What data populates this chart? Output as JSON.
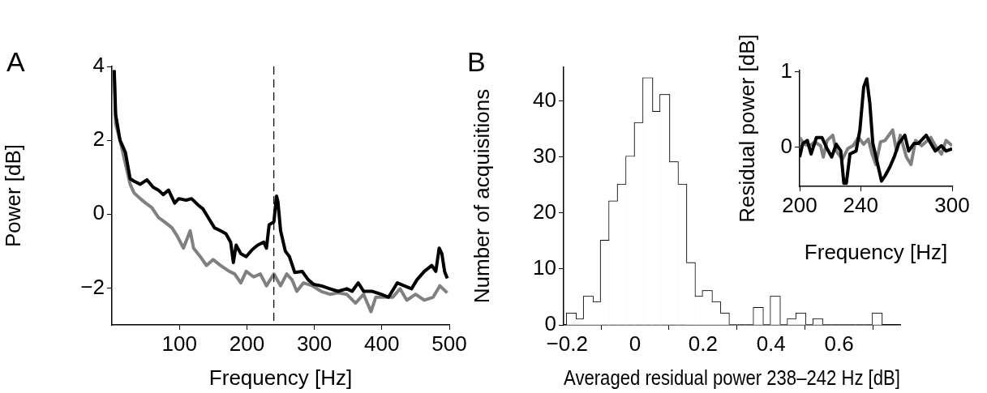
{
  "chart_data": [
    {
      "type": "line",
      "annotations": [
        "A"
      ],
      "xlabel": "Frequency [Hz]",
      "ylabel": "Power [dB]",
      "xlim": [
        0,
        500
      ],
      "ylim": [
        -3,
        4
      ],
      "xticks": [
        100,
        200,
        300,
        400,
        500
      ],
      "yticks": [
        -2,
        0,
        2,
        4
      ],
      "grid": false,
      "marker": "none",
      "ref_lines": [
        {
          "axis": "x",
          "value": 240,
          "color": "#000000",
          "line_style": "dashed"
        }
      ],
      "series": [
        {
          "color": "#000000",
          "x": [
            3.4,
            5.5,
            12,
            20,
            27,
            33,
            42,
            52,
            61,
            69,
            76,
            84,
            93,
            99,
            110,
            118,
            127,
            135,
            144,
            152,
            161,
            169,
            176,
            180,
            184,
            191,
            199,
            208,
            216,
            225,
            229,
            233,
            240,
            244,
            246,
            250,
            257,
            263,
            271,
            282,
            291,
            299,
            310,
            323,
            335,
            348,
            356,
            365,
            373,
            386,
            399,
            410,
            423,
            433,
            444,
            452,
            463,
            474,
            480,
            485,
            489,
            493,
            497
          ],
          "values": [
            3.9,
            2.7,
            2.0,
            1.67,
            0.96,
            0.89,
            0.81,
            0.93,
            0.73,
            0.65,
            0.53,
            0.65,
            0.3,
            0.42,
            0.38,
            0.42,
            0.26,
            0.14,
            -0.13,
            -0.37,
            -0.45,
            -0.53,
            -0.76,
            -1.31,
            -0.84,
            -1.07,
            -1.15,
            -0.96,
            -0.84,
            -0.76,
            -0.92,
            -0.29,
            -0.21,
            0.49,
            0.34,
            -0.45,
            -1.0,
            -1.15,
            -1.58,
            -1.55,
            -1.78,
            -1.9,
            -1.94,
            -2.02,
            -2.09,
            -2.02,
            -2.09,
            -1.86,
            -2.09,
            -2.09,
            -2.17,
            -2.25,
            -1.86,
            -1.94,
            -2.02,
            -1.78,
            -1.55,
            -1.39,
            -1.55,
            -0.92,
            -1.07,
            -1.55,
            -1.74
          ]
        },
        {
          "color": "#808080",
          "x": [
            3.4,
            5.5,
            12,
            20,
            27,
            33,
            42,
            50,
            59,
            69,
            78,
            89,
            97,
            106,
            116,
            121,
            131,
            140,
            150,
            161,
            174,
            182,
            191,
            199,
            210,
            220,
            229,
            240,
            250,
            259,
            267,
            274,
            284,
            297,
            310,
            323,
            335,
            348,
            361,
            373,
            384,
            391,
            403,
            416,
            427,
            437,
            450,
            463,
            476,
            486,
            497
          ],
          "values": [
            3.87,
            2.45,
            2.0,
            1.36,
            0.81,
            0.57,
            0.42,
            0.3,
            0.18,
            -0.09,
            -0.21,
            -0.37,
            -0.6,
            -0.92,
            -0.45,
            -0.92,
            -1.15,
            -1.39,
            -1.23,
            -1.39,
            -1.55,
            -1.62,
            -1.86,
            -1.55,
            -1.7,
            -1.62,
            -1.94,
            -1.62,
            -1.94,
            -1.62,
            -1.78,
            -2.09,
            -1.86,
            -1.94,
            -2.09,
            -2.17,
            -2.13,
            -2.17,
            -2.41,
            -2.17,
            -2.64,
            -2.25,
            -2.25,
            -2.25,
            -2.02,
            -2.33,
            -2.17,
            -2.33,
            -2.25,
            -1.94,
            -2.13
          ]
        }
      ]
    },
    {
      "type": "histogram",
      "annotations": [
        "B"
      ],
      "xlabel": "Averaged residual power 238–242 Hz [dB]",
      "ylabel": "Number of acquisitions",
      "xlim": [
        -0.21,
        0.78
      ],
      "ylim": [
        0,
        46
      ],
      "xticks": [
        -0.2,
        0,
        0.2,
        0.4,
        0.6
      ],
      "yticks": [
        0,
        10,
        20,
        30,
        40
      ],
      "grid": false,
      "color": "#ffffff",
      "bins": [
        -0.2,
        -0.175,
        -0.15,
        -0.125,
        -0.1,
        -0.075,
        -0.05,
        -0.025,
        0,
        0.025,
        0.05,
        0.075,
        0.1,
        0.125,
        0.15,
        0.175,
        0.2,
        0.225,
        0.25,
        0.275,
        0.3,
        0.325,
        0.35,
        0.375,
        0.4,
        0.425,
        0.45,
        0.475,
        0.5,
        0.525,
        0.55,
        0.575,
        0.6,
        0.625,
        0.65,
        0.675,
        0.7,
        0.725
      ],
      "values": [
        2,
        1,
        5,
        4,
        15,
        22,
        25,
        30,
        36,
        44,
        38,
        41,
        29,
        25,
        11,
        5,
        6,
        4,
        2,
        0,
        0,
        0,
        3,
        0,
        5,
        0,
        1,
        2,
        0,
        1,
        0,
        0,
        0,
        0,
        0,
        0,
        2
      ]
    },
    {
      "type": "line",
      "xlabel": "Frequency [Hz]",
      "ylabel": "Residual power [dB]",
      "xlim": [
        200,
        300
      ],
      "ylim": [
        -0.52,
        1.02
      ],
      "xticks": [
        200,
        240,
        300
      ],
      "yticks": [
        0,
        1
      ],
      "grid": false,
      "marker": "none",
      "series": [
        {
          "color": "#000000",
          "x": [
            200,
            202,
            205,
            207.5,
            211,
            214.6,
            218,
            221,
            224,
            227,
            229,
            230.6,
            233,
            237,
            239.5,
            242,
            244,
            246,
            248,
            252,
            253.7,
            256,
            259,
            262,
            265,
            269,
            271.5,
            275,
            277.8,
            283,
            286,
            289,
            293,
            296,
            300
          ],
          "values": [
            -0.13,
            0.05,
            0.09,
            -0.09,
            0.13,
            0.13,
            -0.02,
            -0.13,
            0.04,
            -0.05,
            -0.48,
            -0.48,
            -0.09,
            -0.05,
            0.23,
            0.8,
            0.91,
            0.59,
            0.05,
            -0.3,
            -0.45,
            -0.38,
            -0.27,
            -0.13,
            0.05,
            0.16,
            -0.05,
            0.05,
            0.05,
            0.16,
            0.05,
            -0.05,
            0.02,
            -0.05,
            -0.02
          ]
        },
        {
          "color": "#808080",
          "x": [
            200,
            203,
            206.6,
            210,
            213.7,
            215.5,
            218,
            221.7,
            224,
            228,
            231.5,
            235,
            238.6,
            242,
            245,
            247.5,
            250,
            253,
            256,
            261,
            263.5,
            266,
            270,
            273,
            276,
            280,
            286,
            289,
            293,
            296,
            300
          ],
          "values": [
            0.13,
            0.04,
            0.02,
            0.07,
            0.02,
            -0.13,
            0.09,
            0.16,
            -0.05,
            -0.16,
            -0.02,
            0.02,
            0.13,
            0.04,
            0.11,
            -0.09,
            -0.23,
            0.07,
            0.09,
            0.23,
            -0.05,
            0.16,
            -0.13,
            -0.23,
            0.09,
            0.02,
            0.13,
            0.02,
            -0.09,
            0.09,
            0.02
          ]
        }
      ]
    }
  ]
}
